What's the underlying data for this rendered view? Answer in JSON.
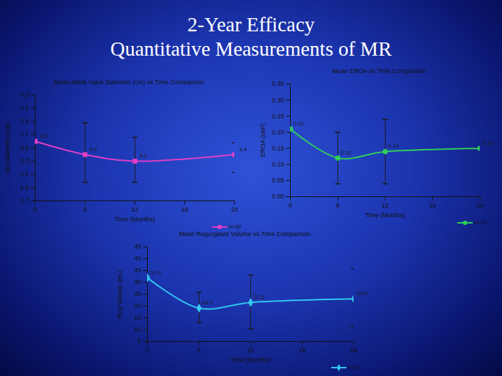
{
  "title": "2-Year Efficacy",
  "subtitle": "Quantitative Measurements of MR",
  "chart_data": [
    {
      "type": "line",
      "title": "Mean Mitral Valve Diameter (cm) vs Time Comparison",
      "x_label": "Time (Months)",
      "y_label": "MV Diameter (cm)",
      "x": [
        0,
        6,
        12,
        24
      ],
      "xlim": [
        0,
        24
      ],
      "xticks": [
        0,
        6,
        12,
        18,
        24
      ],
      "ylim": [
        2.7,
        4.3
      ],
      "yticks": [
        2.7,
        2.9,
        3.1,
        3.3,
        3.5,
        3.7,
        3.9,
        4.1,
        4.3
      ],
      "data_labels": true,
      "legend": "bottom",
      "series": [
        {
          "name": "n=30",
          "color": "#e23fc8",
          "marker": "square",
          "values": [
            3.6,
            3.4,
            3.3,
            3.4
          ],
          "error_low": [
            null,
            2.98,
            2.98,
            3.13
          ],
          "error_high": [
            null,
            3.88,
            3.66,
            3.58
          ]
        }
      ]
    },
    {
      "type": "line",
      "title": "Mean EROA vs Time Comparison",
      "x_label": "Time (Months)",
      "y_label": "EROA (cm²)",
      "x": [
        0,
        6,
        12,
        24
      ],
      "xlim": [
        0,
        24
      ],
      "xticks": [
        0,
        6,
        12,
        18,
        24
      ],
      "ylim": [
        0,
        0.35
      ],
      "yticks": [
        {
          "value": 0,
          "label": "0.00"
        },
        0.05,
        {
          "value": 0.1,
          "label": "0.10"
        },
        0.15,
        {
          "value": 0.2,
          "label": "0.20"
        },
        0.25,
        {
          "value": 0.3,
          "label": "0.30"
        },
        0.35
      ],
      "data_labels": true,
      "legend": "bottom",
      "series": [
        {
          "name": "n=13",
          "color": "#2fcf5a",
          "marker": "circle",
          "values": [
            0.21,
            0.12,
            0.14,
            0.15
          ],
          "error_low": [
            null,
            0.04,
            0.04,
            null
          ],
          "error_high": [
            null,
            0.2,
            0.24,
            null
          ]
        }
      ]
    },
    {
      "type": "line",
      "title": "Mean Regurgitant Volume vs Time Comparison",
      "x_label": "Time (Months)",
      "y_label": "Reg Volume (mL)",
      "x": [
        0,
        6,
        12,
        24
      ],
      "xlim": [
        0,
        24
      ],
      "xticks": [
        0,
        6,
        12,
        18,
        24
      ],
      "ylim": [
        5,
        45
      ],
      "yticks": [
        5,
        10,
        15,
        20,
        25,
        30,
        35,
        40,
        45
      ],
      "data_labels": true,
      "legend": "bottom",
      "series": [
        {
          "name": "n=13",
          "color": "#33c8f0",
          "marker": "diamond",
          "values": [
            31.9,
            19.1,
            21.5,
            23
          ],
          "value_labels": [
            "31.9",
            "19.1",
            "21.5",
            "23.0"
          ],
          "error_low": [
            null,
            13,
            10.4,
            11.2
          ],
          "error_high": [
            null,
            25.8,
            33.2,
            35.7
          ]
        }
      ]
    }
  ]
}
